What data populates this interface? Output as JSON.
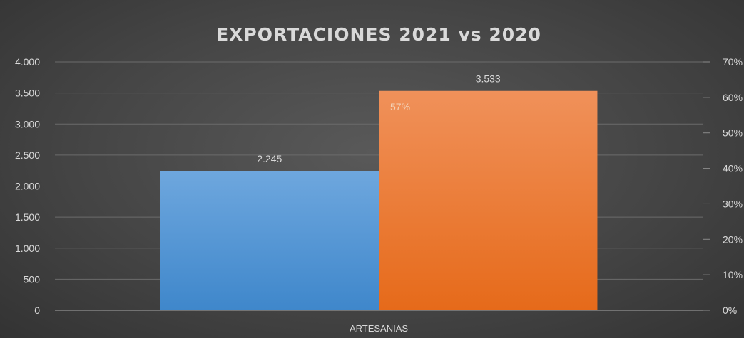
{
  "chart_data": {
    "type": "bar",
    "title": "EXPORTACIONES 2021 vs 2020",
    "categories": [
      "ARTESANIAS"
    ],
    "series": [
      {
        "values": [
          2245
        ],
        "label": "2.245",
        "color": "#5b9bd5"
      },
      {
        "values": [
          3533
        ],
        "label": "3.533",
        "color": "#ed7d31"
      }
    ],
    "secondary_annotation": {
      "value": 57,
      "label": "57%"
    },
    "ylim": [
      0,
      4000
    ],
    "y_ticks": [
      0,
      500,
      1000,
      1500,
      2000,
      2500,
      3000,
      3500,
      4000
    ],
    "y_tick_labels": [
      "0",
      "500",
      "1.000",
      "1.500",
      "2.000",
      "2.500",
      "3.000",
      "3.500",
      "4.000"
    ],
    "y2lim": [
      0,
      70
    ],
    "y2_ticks": [
      0,
      10,
      20,
      30,
      40,
      50,
      60,
      70
    ],
    "y2_tick_labels": [
      "0%",
      "10%",
      "20%",
      "30%",
      "40%",
      "50%",
      "60%",
      "70%"
    ],
    "grid": true,
    "legend": "none"
  }
}
